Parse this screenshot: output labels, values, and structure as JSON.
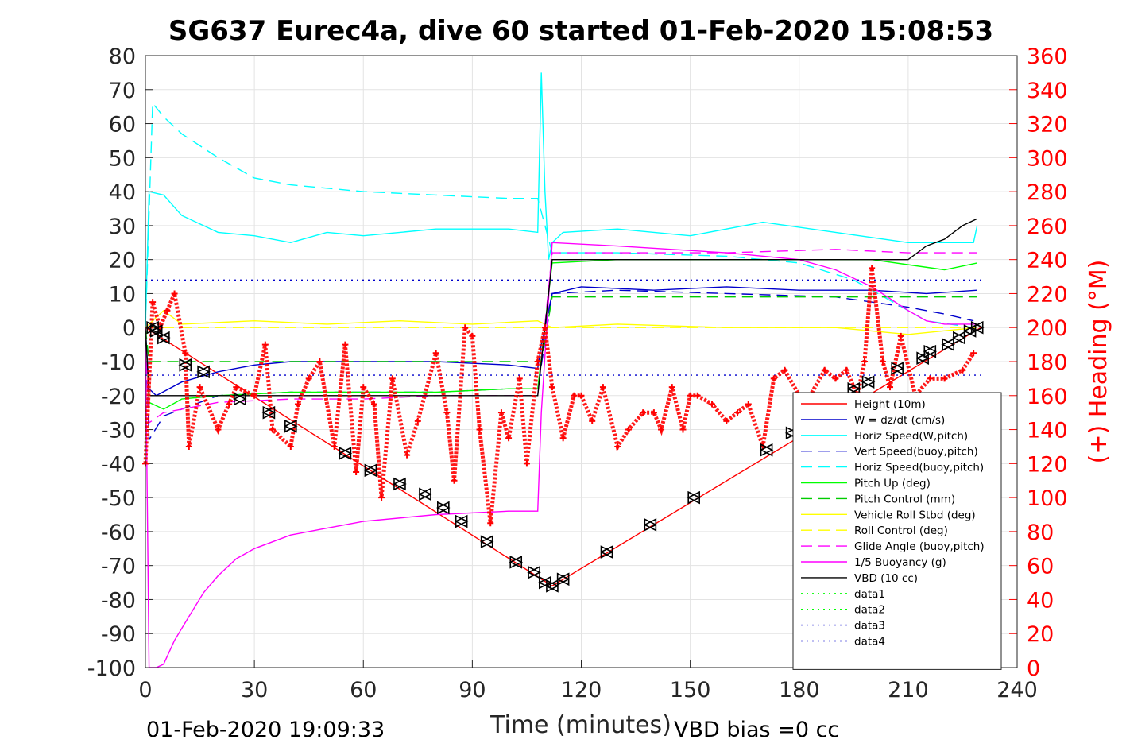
{
  "chart_data": {
    "type": "line",
    "title": "SG637 Eurec4a, dive 60 started 01-Feb-2020 15:08:53",
    "xlabel": "Time (minutes)",
    "ylabel": "",
    "y2label": "(+) Heading (°M)",
    "xlim": [
      0,
      240
    ],
    "ylim": [
      -100,
      80
    ],
    "y2lim": [
      0,
      360
    ],
    "x_ticks": [
      "0",
      "30",
      "60",
      "90",
      "120",
      "150",
      "180",
      "210",
      "240"
    ],
    "y_ticks": [
      "80",
      "70",
      "60",
      "50",
      "40",
      "30",
      "20",
      "10",
      "0",
      "-10",
      "-20",
      "-30",
      "-40",
      "-50",
      "-60",
      "-70",
      "-80",
      "-90",
      "-100"
    ],
    "y2_ticks": [
      "360",
      "340",
      "320",
      "300",
      "280",
      "260",
      "240",
      "220",
      "200",
      "180",
      "160",
      "140",
      "120",
      "100",
      "80",
      "60",
      "40",
      "20",
      "0"
    ],
    "grid": true,
    "legend_position": "bottom-right",
    "footer_left": "01-Feb-2020 19:09:33",
    "footer_right": "VBD bias =0 cc",
    "series": [
      {
        "name": "Height (10m)",
        "color": "#ff0000",
        "style": "solid",
        "x": [
          0,
          112,
          230
        ],
        "y": [
          0,
          -76,
          0
        ]
      },
      {
        "name": "W = dz/dt (cm/s)",
        "color": "#0000cc",
        "style": "solid",
        "x": [
          0,
          1,
          3,
          10,
          20,
          30,
          40,
          60,
          80,
          100,
          108,
          109,
          112,
          120,
          140,
          160,
          180,
          200,
          215,
          229
        ],
        "y": [
          0,
          -18,
          -20,
          -16,
          -13,
          -11,
          -10,
          -10,
          -10,
          -11,
          -12,
          -5,
          10,
          12,
          11,
          12,
          11,
          11,
          10,
          11
        ]
      },
      {
        "name": "Horiz Speed(W,pitch)",
        "color": "#00ffff",
        "style": "solid",
        "x": [
          0,
          1,
          5,
          10,
          20,
          30,
          40,
          50,
          60,
          80,
          100,
          108,
          109,
          110,
          111,
          112,
          115,
          130,
          150,
          170,
          190,
          210,
          220,
          228,
          229
        ],
        "y": [
          0,
          40,
          39,
          33,
          28,
          27,
          25,
          28,
          27,
          29,
          29,
          28,
          75,
          40,
          20,
          25,
          28,
          29,
          27,
          31,
          28,
          25,
          25,
          25,
          30
        ]
      },
      {
        "name": "Vert Speed(buoy,pitch)",
        "color": "#0000cc",
        "style": "dashed",
        "x": [
          0,
          1,
          5,
          20,
          40,
          60,
          80,
          100,
          108,
          112,
          130,
          160,
          190,
          210,
          220,
          228
        ],
        "y": [
          0,
          -33,
          -26,
          -20,
          -19,
          -19,
          -19,
          -18,
          -18,
          10,
          11,
          10,
          9,
          6,
          4,
          2
        ]
      },
      {
        "name": "Horiz Speed(buoy,pitch)",
        "color": "#00ffff",
        "style": "dashed",
        "x": [
          0,
          2,
          5,
          10,
          20,
          30,
          40,
          60,
          80,
          100,
          108,
          112,
          130,
          160,
          180,
          195,
          205,
          215,
          228
        ],
        "y": [
          0,
          66,
          62,
          57,
          50,
          44,
          42,
          40,
          39,
          38,
          38,
          22,
          22,
          21,
          19,
          14,
          8,
          2,
          0
        ]
      },
      {
        "name": "Pitch Up (deg)",
        "color": "#00ff00",
        "style": "solid",
        "x": [
          0,
          1,
          5,
          10,
          20,
          40,
          60,
          80,
          100,
          108,
          112,
          130,
          160,
          190,
          200,
          220,
          229
        ],
        "y": [
          0,
          -22,
          -24,
          -21,
          -20,
          -19,
          -19,
          -19,
          -18,
          -18,
          19,
          20,
          20,
          20,
          20,
          17,
          19
        ]
      },
      {
        "name": "Pitch Control (mm)",
        "color": "#00cc00",
        "style": "dashed",
        "x": [
          0,
          1,
          108,
          109,
          112,
          229
        ],
        "y": [
          0,
          -10,
          -10,
          -10,
          9,
          9
        ]
      },
      {
        "name": "Vehicle Roll Stbd (deg)",
        "color": "#ffff00",
        "style": "solid",
        "x": [
          0,
          5,
          10,
          30,
          50,
          70,
          90,
          108,
          112,
          130,
          160,
          190,
          210,
          229
        ],
        "y": [
          0,
          5,
          1,
          2,
          1,
          2,
          1,
          2,
          0,
          1,
          0,
          0,
          -2,
          0
        ]
      },
      {
        "name": "Roll Control (deg)",
        "color": "#ffff00",
        "style": "dashed",
        "x": [
          0,
          229
        ],
        "y": [
          0,
          0
        ]
      },
      {
        "name": "Glide Angle (buoy,pitch)",
        "color": "#ff00ff",
        "style": "dashed",
        "x": [
          0,
          1,
          5,
          20,
          40,
          60,
          80,
          100,
          108,
          112,
          130,
          160,
          190,
          210,
          229
        ],
        "y": [
          0,
          -28,
          -25,
          -22,
          -21,
          -21,
          -20,
          -20,
          -20,
          22,
          22,
          22,
          23,
          22,
          22
        ]
      },
      {
        "name": "1/5 Buoyancy (g)",
        "color": "#ff00ff",
        "style": "solid",
        "x": [
          0,
          1,
          3,
          5,
          8,
          12,
          16,
          20,
          25,
          30,
          40,
          50,
          60,
          80,
          100,
          108,
          109,
          112,
          130,
          160,
          180,
          190,
          200,
          210,
          215,
          220,
          229
        ],
        "y": [
          0,
          -100,
          -100,
          -99,
          -92,
          -85,
          -78,
          -73,
          -68,
          -65,
          -61,
          -59,
          -57,
          -55,
          -54,
          -54,
          -25,
          25,
          24,
          22,
          20,
          17,
          12,
          5,
          2,
          1,
          1
        ]
      },
      {
        "name": "VBD (10 cc)",
        "color": "#000000",
        "style": "solid",
        "x": [
          0,
          1,
          108,
          112,
          200,
          210,
          215,
          220,
          225,
          229
        ],
        "y": [
          0,
          -20,
          -20,
          20,
          20,
          20,
          24,
          26,
          30,
          32
        ]
      },
      {
        "name": "data1",
        "color": "#00ff00",
        "style": "dotted",
        "x": [],
        "y": []
      },
      {
        "name": "data2",
        "color": "#00ff00",
        "style": "dotted",
        "x": [],
        "y": []
      },
      {
        "name": "data3",
        "color": "#0000cc",
        "style": "dotted",
        "x": [
          0,
          230
        ],
        "y": [
          14,
          14
        ]
      },
      {
        "name": "data4",
        "color": "#0000cc",
        "style": "dotted",
        "x": [
          0,
          230
        ],
        "y": [
          -14,
          -14
        ]
      }
    ],
    "glide_markers": {
      "color": "#000000",
      "x": [
        2,
        3,
        5,
        11,
        16,
        26,
        34,
        40,
        55,
        62,
        70,
        77,
        82,
        87,
        94,
        102,
        107,
        110,
        112,
        115,
        127,
        139,
        151,
        171,
        178,
        195,
        199,
        207,
        214,
        216,
        221,
        224,
        227,
        229
      ],
      "y": [
        0,
        -1,
        -3,
        -11,
        -13,
        -21,
        -25,
        -29,
        -37,
        -42,
        -46,
        -49,
        -53,
        -57,
        -63,
        -69,
        -72,
        -75,
        -76,
        -74,
        -66,
        -58,
        -50,
        -36,
        -31,
        -18,
        -16,
        -12,
        -9,
        -7,
        -5,
        -3,
        -1,
        0
      ]
    },
    "heading": {
      "name": "(+) Heading (°M)",
      "color": "#ff0000",
      "x": [
        0,
        2,
        4,
        6,
        8,
        11,
        12,
        15,
        20,
        23,
        25,
        30,
        33,
        35,
        40,
        42,
        45,
        48,
        52,
        55,
        58,
        60,
        63,
        65,
        68,
        72,
        75,
        80,
        83,
        85,
        88,
        90,
        92,
        95,
        98,
        100,
        103,
        105,
        108,
        110,
        112,
        115,
        118,
        120,
        123,
        126,
        130,
        133,
        137,
        140,
        142,
        145,
        148,
        150,
        152,
        156,
        160,
        163,
        166,
        170,
        173,
        176,
        180,
        183,
        187,
        190,
        193,
        196,
        198,
        200,
        203,
        205,
        208,
        212,
        216,
        220,
        225,
        228
      ],
      "y": [
        120,
        215,
        200,
        210,
        220,
        185,
        130,
        165,
        140,
        155,
        165,
        160,
        190,
        140,
        130,
        155,
        170,
        180,
        130,
        190,
        115,
        165,
        155,
        100,
        170,
        125,
        145,
        185,
        150,
        110,
        200,
        195,
        140,
        85,
        150,
        135,
        170,
        120,
        180,
        200,
        165,
        135,
        160,
        160,
        145,
        165,
        130,
        140,
        150,
        150,
        140,
        165,
        140,
        160,
        160,
        155,
        145,
        150,
        155,
        130,
        170,
        175,
        160,
        160,
        175,
        170,
        175,
        160,
        180,
        235,
        180,
        165,
        195,
        160,
        170,
        170,
        175,
        185
      ]
    }
  }
}
